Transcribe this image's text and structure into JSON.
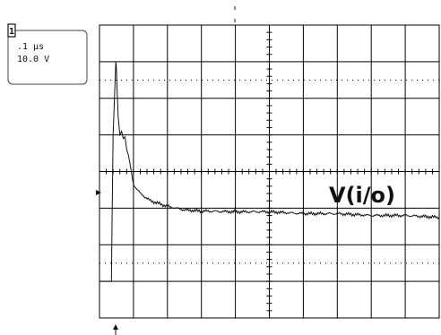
{
  "readout": {
    "channel_tag": "1",
    "timebase": ".1 µs",
    "volts_per_div": "10.0 V"
  },
  "trace_label": "V(i/o)",
  "grid": {
    "divisions_x": 10,
    "divisions_y": 8,
    "minor_ticks_per_division": 5,
    "dotted_levels": true
  },
  "markers": {
    "ground_reference": "arrow-right",
    "trigger_position": "arrow-up"
  },
  "colors": {
    "background": "#ffffff",
    "graticule": "#000000",
    "trace": "#111111",
    "readout_border": "#444444"
  },
  "chart_data": {
    "type": "line",
    "xlabel": "",
    "ylabel": "",
    "x_unit_per_div": 0.1,
    "y_unit_per_div": 10.0,
    "xlim_div": [
      0,
      10
    ],
    "ylim_div": [
      -4,
      4
    ],
    "series": [
      {
        "x_div": [
          0.0,
          0.35,
          0.4,
          0.48,
          0.5,
          0.52,
          0.55,
          0.6,
          0.65,
          0.7,
          0.75,
          0.8,
          0.85,
          0.9,
          1.0,
          1.2,
          1.5,
          2.0,
          2.5,
          3.0,
          4.0,
          5.0,
          6.0,
          7.0,
          8.0,
          9.0,
          10.0
        ],
        "y_div": [
          -3.0,
          -3.0,
          1.0,
          3.0,
          2.8,
          2.2,
          1.5,
          1.0,
          1.1,
          0.9,
          0.95,
          0.6,
          0.45,
          0.2,
          -0.35,
          -0.6,
          -0.8,
          -0.95,
          -1.05,
          -1.08,
          -1.1,
          -1.1,
          -1.15,
          -1.15,
          -1.2,
          -1.2,
          -1.25
        ]
      }
    ]
  }
}
